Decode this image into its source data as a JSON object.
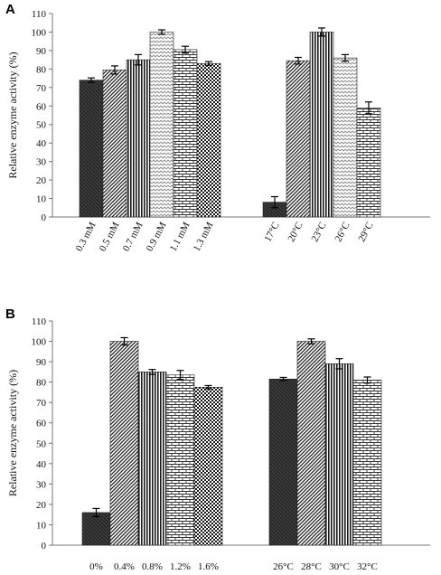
{
  "chart_data": [
    {
      "panel_label": "A",
      "type": "bar",
      "ylabel": "Relative enzyme activity (%)",
      "ylim": [
        0,
        110
      ],
      "yticks": [
        0,
        10,
        20,
        30,
        40,
        50,
        60,
        70,
        80,
        90,
        100,
        110
      ],
      "grid": false,
      "groups": [
        {
          "categories": [
            "0.3 mM",
            "0.5 mM",
            "0.7 mM",
            "0.9 mM",
            "1.1 mM",
            "1.3 mM"
          ],
          "values": [
            74,
            79.5,
            85,
            100,
            90.5,
            83
          ],
          "errors": [
            1.2,
            2.2,
            2.8,
            1.2,
            1.8,
            1.0
          ],
          "patterns": [
            "solid",
            "diag",
            "vert",
            "wave",
            "brick",
            "check"
          ]
        },
        {
          "categories": [
            "17°C",
            "20°C",
            "23°C",
            "26°C",
            "29°C"
          ],
          "values": [
            8,
            84.5,
            100,
            86,
            59
          ],
          "errors": [
            3.0,
            1.8,
            2.2,
            1.8,
            3.2
          ],
          "patterns": [
            "solid",
            "diag",
            "vert",
            "wave",
            "brick"
          ]
        }
      ]
    },
    {
      "panel_label": "B",
      "type": "bar",
      "ylabel": "Relative enzyme activity (%)",
      "ylim": [
        0,
        110
      ],
      "yticks": [
        0,
        10,
        20,
        30,
        40,
        50,
        60,
        70,
        80,
        90,
        100,
        110
      ],
      "grid": false,
      "groups": [
        {
          "categories": [
            "0%",
            "0.4%",
            "0.8%",
            "1.2%",
            "1.6%"
          ],
          "values": [
            16,
            100,
            85,
            83.5,
            77.5
          ],
          "errors": [
            2.0,
            1.8,
            1.2,
            2.2,
            0.8
          ],
          "patterns": [
            "solid",
            "diag",
            "vert",
            "brick",
            "check"
          ]
        },
        {
          "categories": [
            "26°C",
            "28°C",
            "30°C",
            "32°C"
          ],
          "values": [
            81.5,
            100,
            89,
            81
          ],
          "errors": [
            0.8,
            1.2,
            2.5,
            1.5
          ],
          "patterns": [
            "solid",
            "diag",
            "vert",
            "brick"
          ]
        }
      ]
    }
  ]
}
